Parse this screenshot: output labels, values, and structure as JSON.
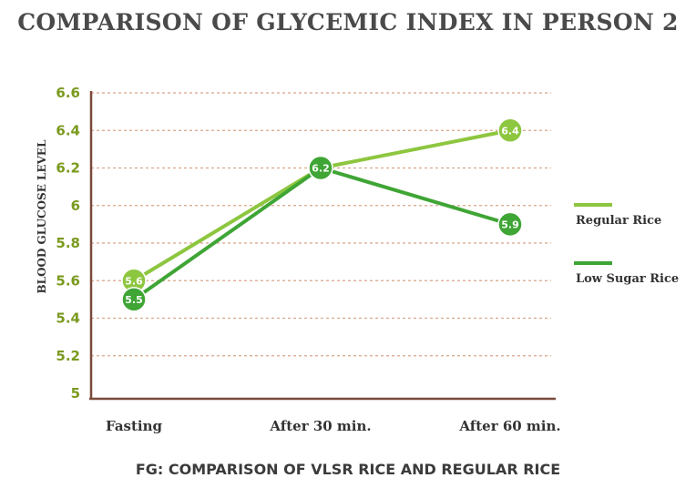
{
  "title": "COMPARISON OF GLYCEMIC INDEX  IN PERSON 2",
  "caption": "FG: COMPARISON OF VLSR RICE AND REGULAR RICE",
  "chart_data": {
    "type": "line",
    "categories": [
      "Fasting",
      "After 30 min.",
      "After 60 min."
    ],
    "series": [
      {
        "name": "Regular Rice",
        "values": [
          5.6,
          6.2,
          6.4
        ],
        "data_labels": [
          "5.6",
          "6.2",
          "6.4"
        ],
        "color": "#8dc63f"
      },
      {
        "name": "Low Sugar Rice",
        "values": [
          5.5,
          6.2,
          5.9
        ],
        "data_labels": [
          "5.5",
          "6.2",
          "5.9"
        ],
        "color": "#3fa535"
      }
    ],
    "ylabel": "BLOOD GLUCOSE LEVEL",
    "xlabel": "",
    "ylim": [
      5,
      6.6
    ],
    "yticks": [
      5,
      5.2,
      5.4,
      5.6,
      5.8,
      6,
      6.2,
      6.4,
      6.6
    ],
    "ytick_labels": [
      "5",
      "5.2",
      "5.4",
      "5.6",
      "5.8",
      "6",
      "6.2",
      "6.4",
      "6.6"
    ],
    "grid": true,
    "legend_position": "right",
    "colors": {
      "grid": "#d9a58a",
      "axis": "#7a4a3a",
      "tick_label": "#7a9a1e"
    }
  }
}
